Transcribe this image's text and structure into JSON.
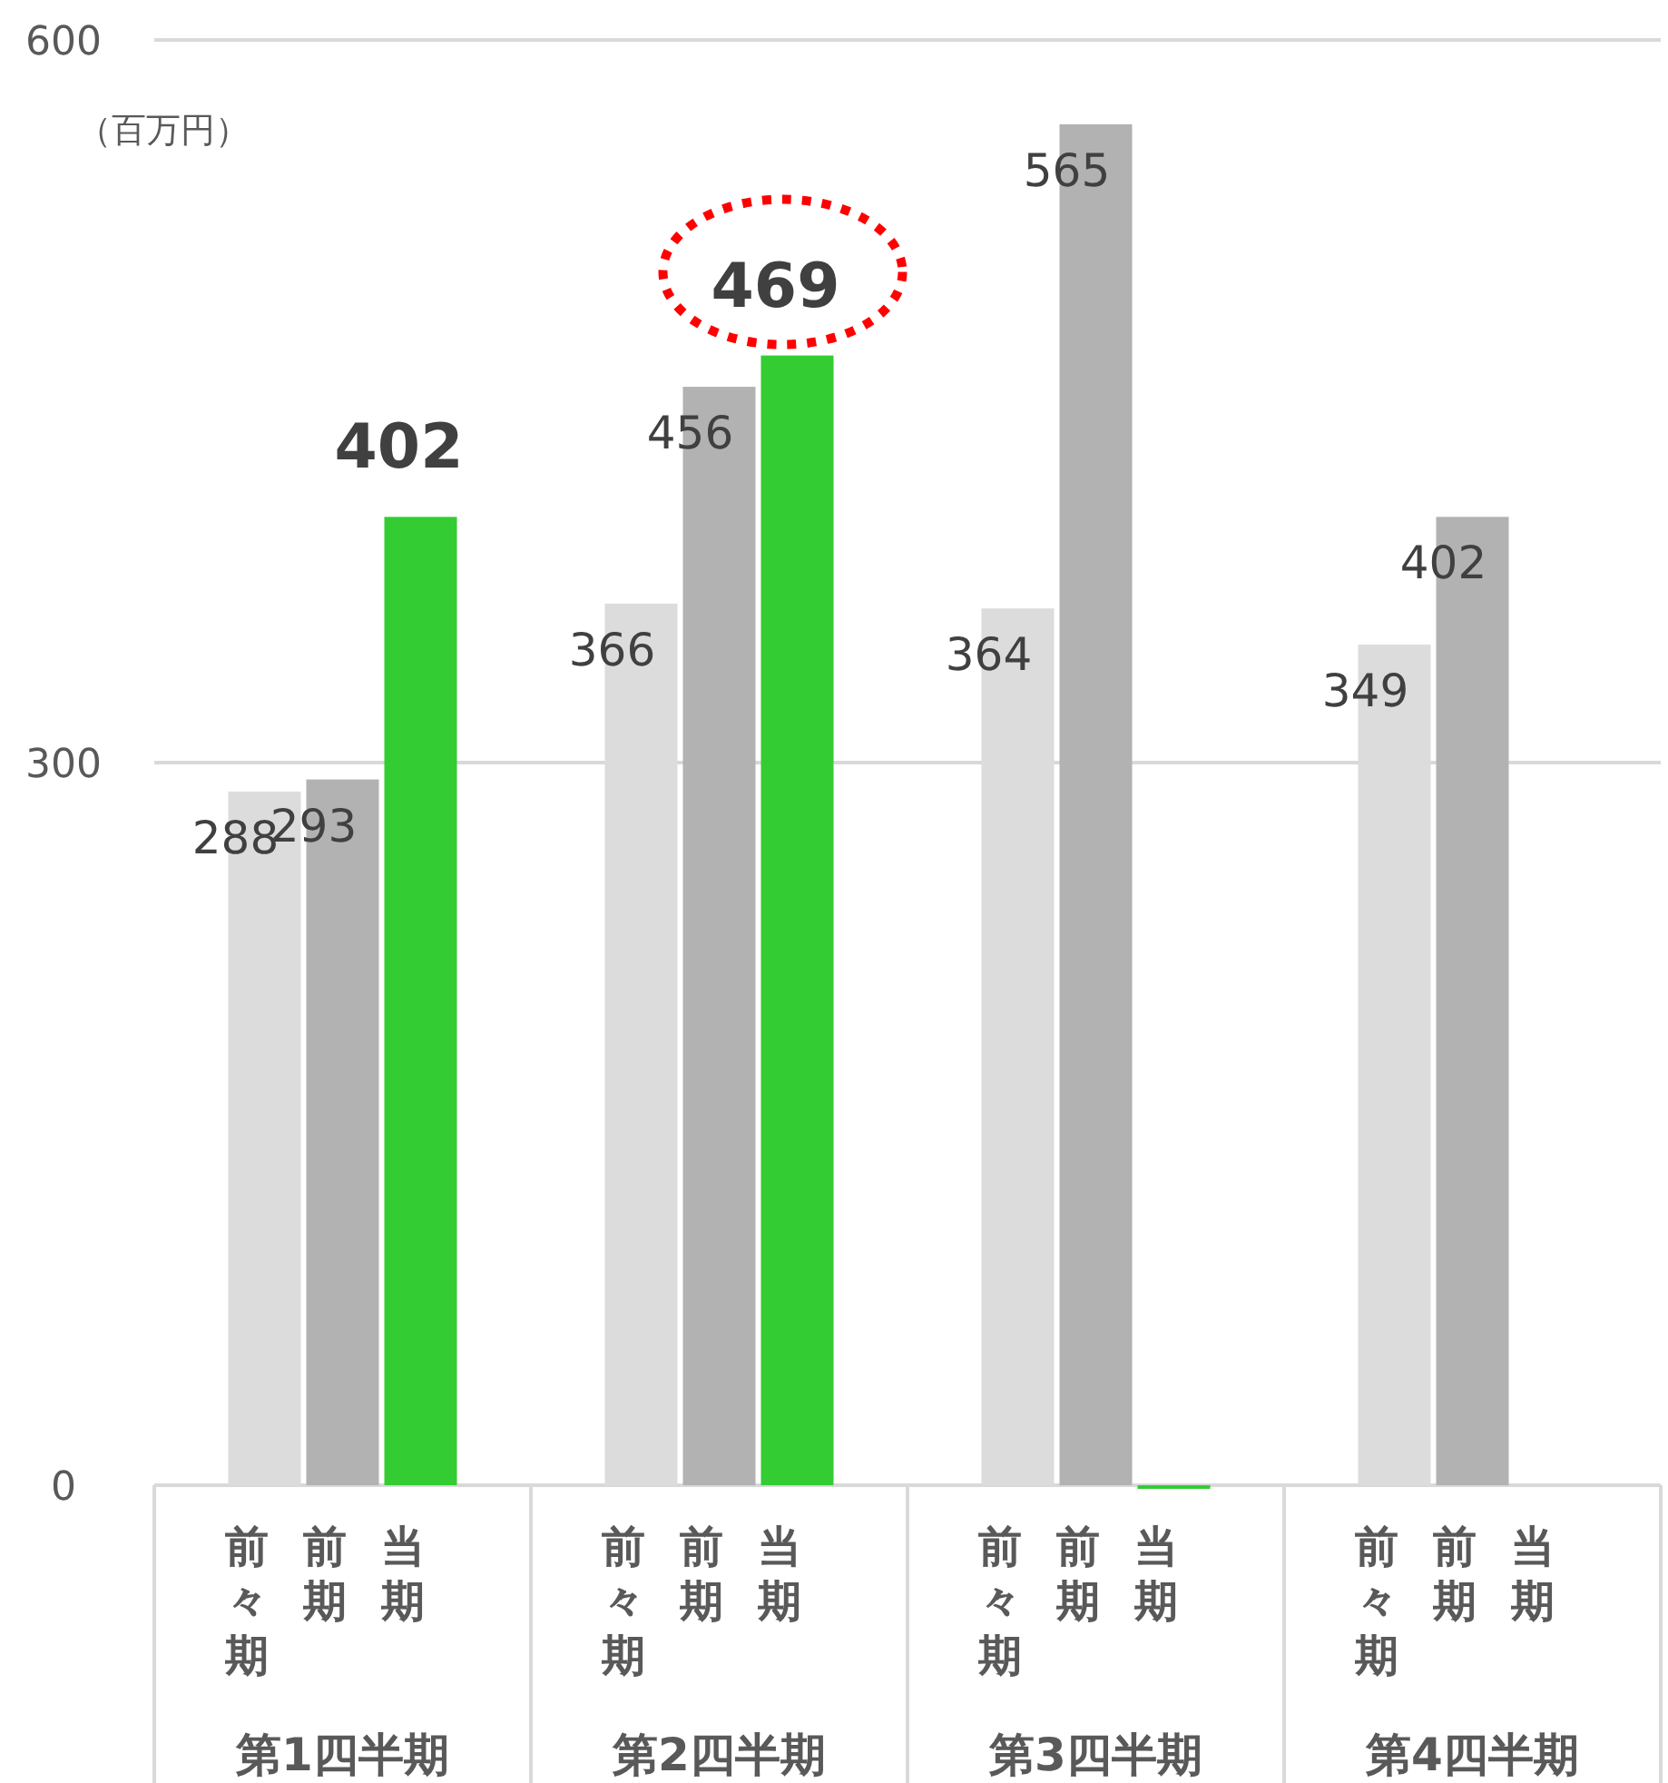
{
  "chart_data": {
    "type": "bar",
    "ylabel": "（百万円）",
    "categories": [
      "第1四半期",
      "第2四半期",
      "第3四半期",
      "第4四半期"
    ],
    "series": [
      {
        "name": "前々期",
        "color": "#dcdcdc",
        "values": [
          288,
          366,
          364,
          349
        ],
        "value_labels": [
          "288",
          "366",
          "364",
          "349"
        ]
      },
      {
        "name": "前期",
        "color": "#b2b2b2",
        "values": [
          293,
          456,
          565,
          402
        ],
        "value_labels": [
          "293",
          "456",
          "565",
          "402"
        ]
      },
      {
        "name": "当期",
        "color": "#33cc33",
        "values": [
          402,
          469,
          0,
          null
        ],
        "value_labels": [
          "402",
          "469",
          null,
          null
        ]
      }
    ],
    "ylim": [
      0,
      600
    ],
    "yticks": [
      0,
      300,
      600
    ],
    "grid": "y"
  }
}
